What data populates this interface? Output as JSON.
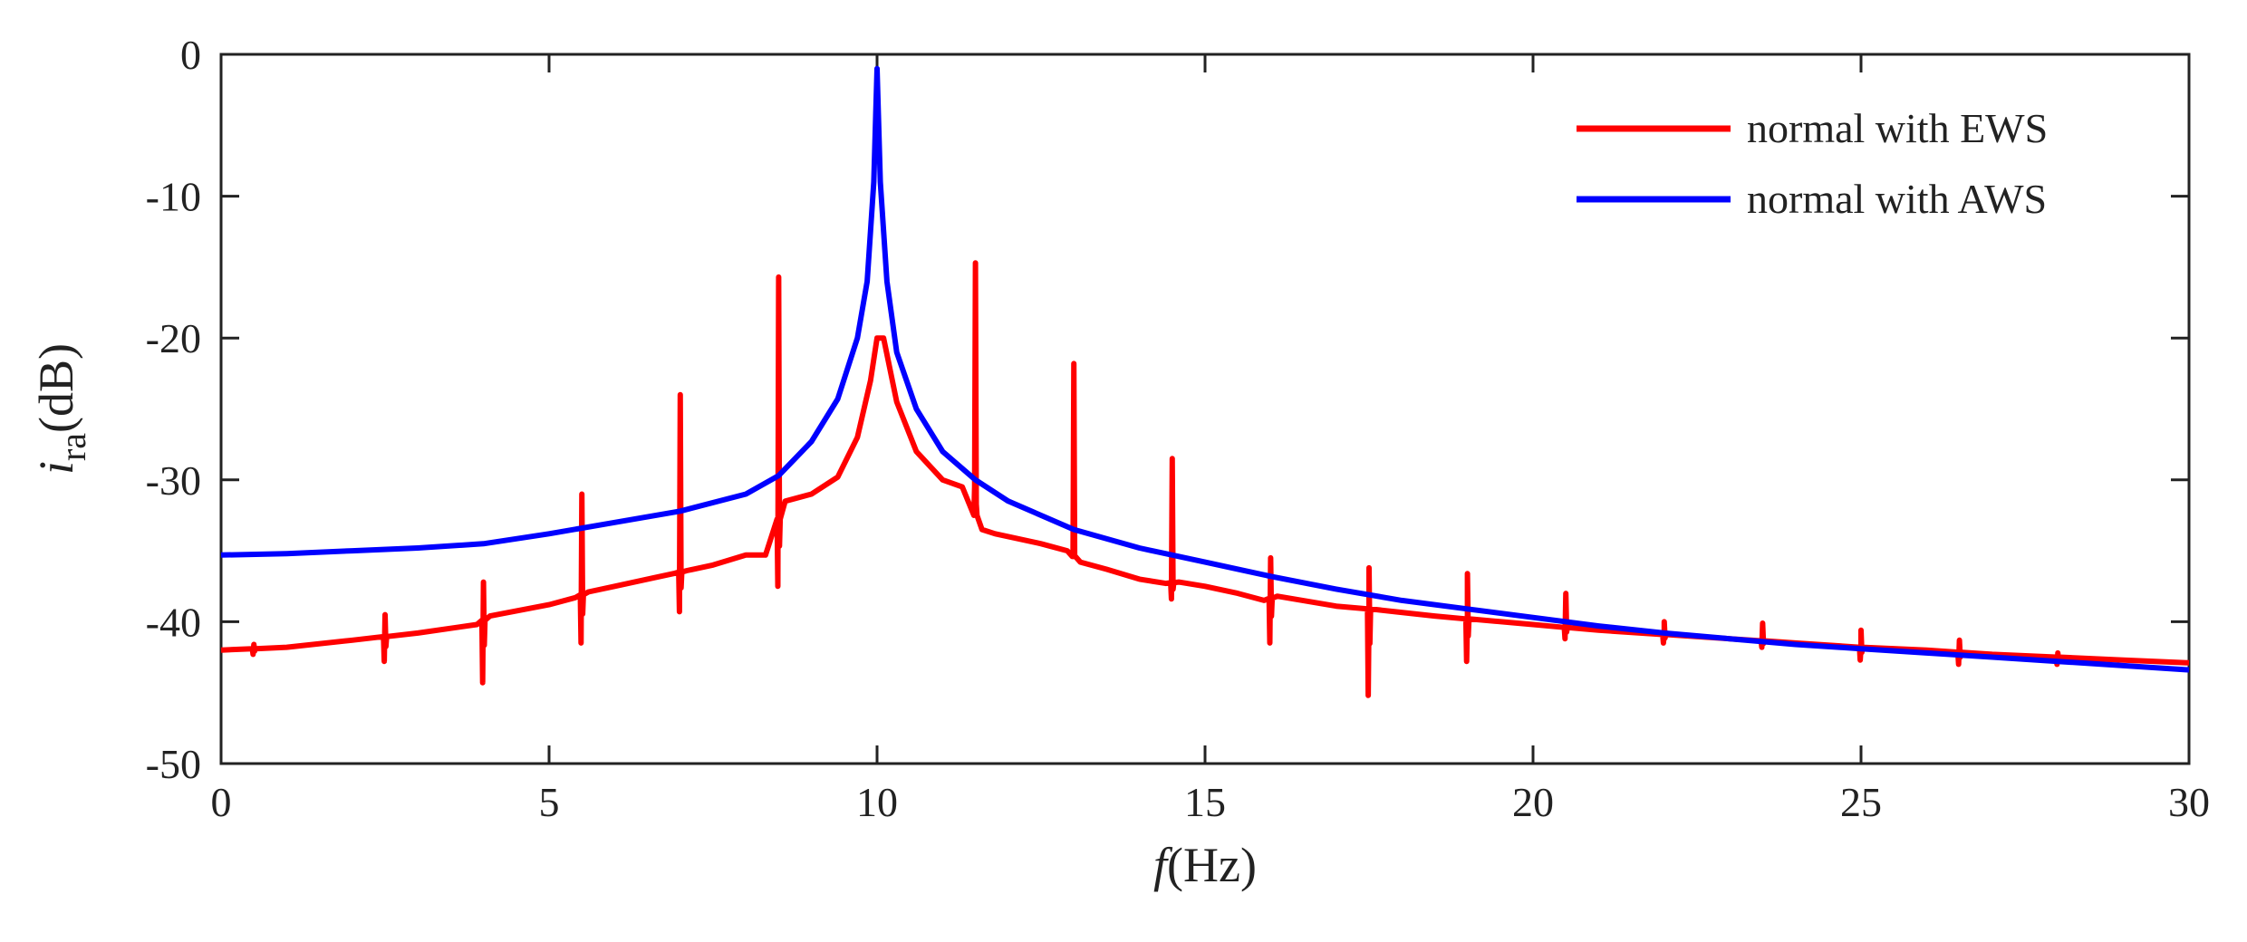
{
  "chart_data": {
    "type": "line",
    "title": "",
    "xlabel": "f(Hz)",
    "xlabel_parts": {
      "var": "f",
      "unit": "(Hz)"
    },
    "ylabel": "i_ra(dB)",
    "ylabel_parts": {
      "var": "i",
      "sub": "ra",
      "unit": "(dB)"
    },
    "xlim": [
      0,
      30
    ],
    "ylim": [
      -50,
      0
    ],
    "xticks": [
      0,
      5,
      10,
      15,
      20,
      25,
      30
    ],
    "yticks": [
      0,
      -10,
      -20,
      -30,
      -40,
      -50
    ],
    "grid": false,
    "legend_position": "top-right",
    "series": [
      {
        "name": "normal with EWS",
        "color": "#ff0000",
        "base": {
          "x": [
            0,
            1,
            2,
            3,
            3.9,
            4.1,
            5,
            5.4,
            5.6,
            6,
            6.5,
            6.9,
            7.1,
            7.5,
            8,
            8.3,
            8.6,
            9,
            9.4,
            9.7,
            9.9,
            10,
            10.1,
            10.3,
            10.6,
            11,
            11.3,
            11.6,
            11.8,
            12,
            12.5,
            12.9,
            13.1,
            13.5,
            14,
            14.4,
            14.6,
            15,
            15.5,
            15.9,
            16.1,
            17,
            17.5,
            17.9,
            18.5,
            19,
            20,
            21,
            22,
            23,
            24,
            25,
            26,
            27,
            28,
            29,
            30
          ],
          "y": [
            -42,
            -41.8,
            -41.3,
            -40.8,
            -40.2,
            -39.6,
            -38.8,
            -38.3,
            -37.9,
            -37.5,
            -37,
            -36.6,
            -36.4,
            -36,
            -35.3,
            -35.3,
            -31.5,
            -31,
            -29.8,
            -27,
            -23,
            -20,
            -20,
            -24.5,
            -28,
            -30,
            -30.5,
            -33.5,
            -33.8,
            -34,
            -34.5,
            -35,
            -35.8,
            -36.3,
            -37,
            -37.3,
            -37.2,
            -37.5,
            -38,
            -38.5,
            -38.2,
            -38.9,
            -39.1,
            -39.3,
            -39.6,
            -39.8,
            -40.2,
            -40.6,
            -40.9,
            -41.2,
            -41.5,
            -41.8,
            -42,
            -42.3,
            -42.5,
            -42.7,
            -42.9
          ]
        },
        "spikes": [
          {
            "f": 0.5,
            "low": -42.3,
            "high": -41.6
          },
          {
            "f": 2.5,
            "low": -42.8,
            "high": -39.5
          },
          {
            "f": 4.0,
            "low": -44.3,
            "high": -37.2
          },
          {
            "f": 5.5,
            "low": -41.5,
            "high": -31.0
          },
          {
            "f": 7.0,
            "low": -39.3,
            "high": -24.0
          },
          {
            "f": 8.5,
            "low": -37.5,
            "high": -15.7
          },
          {
            "f": 11.5,
            "low": -30.5,
            "high": -14.7
          },
          {
            "f": 13.0,
            "low": -35.4,
            "high": -21.8
          },
          {
            "f": 14.5,
            "low": -38.4,
            "high": -28.5
          },
          {
            "f": 16.0,
            "low": -41.5,
            "high": -35.5
          },
          {
            "f": 17.5,
            "low": -45.2,
            "high": -36.2
          },
          {
            "f": 19.0,
            "low": -42.8,
            "high": -36.6
          },
          {
            "f": 20.5,
            "low": -41.2,
            "high": -38.0
          },
          {
            "f": 22.0,
            "low": -41.5,
            "high": -40.0
          },
          {
            "f": 23.5,
            "low": -41.8,
            "high": -40.1
          },
          {
            "f": 25.0,
            "low": -42.7,
            "high": -40.6
          },
          {
            "f": 26.5,
            "low": -43.0,
            "high": -41.3
          },
          {
            "f": 28.0,
            "low": -43.0,
            "high": -42.2
          }
        ]
      },
      {
        "name": "normal with AWS",
        "color": "#0000ff",
        "x": [
          0,
          1,
          2,
          3,
          4,
          5,
          6,
          7,
          8,
          8.5,
          9,
          9.4,
          9.7,
          9.85,
          9.95,
          10,
          10.05,
          10.15,
          10.3,
          10.6,
          11,
          11.5,
          12,
          13,
          14,
          15,
          16,
          17,
          18,
          19,
          20,
          21,
          22,
          23,
          24,
          25,
          26,
          27,
          28,
          29,
          30
        ],
        "y": [
          -35.3,
          -35.2,
          -35,
          -34.8,
          -34.5,
          -33.8,
          -33,
          -32.2,
          -31,
          -29.7,
          -27.3,
          -24.3,
          -20,
          -16,
          -9,
          -1,
          -9,
          -16,
          -21,
          -25,
          -28,
          -30,
          -31.5,
          -33.5,
          -34.8,
          -35.8,
          -36.8,
          -37.7,
          -38.5,
          -39.1,
          -39.7,
          -40.3,
          -40.8,
          -41.2,
          -41.6,
          -41.9,
          -42.2,
          -42.5,
          -42.8,
          -43.1,
          -43.4
        ]
      }
    ]
  }
}
